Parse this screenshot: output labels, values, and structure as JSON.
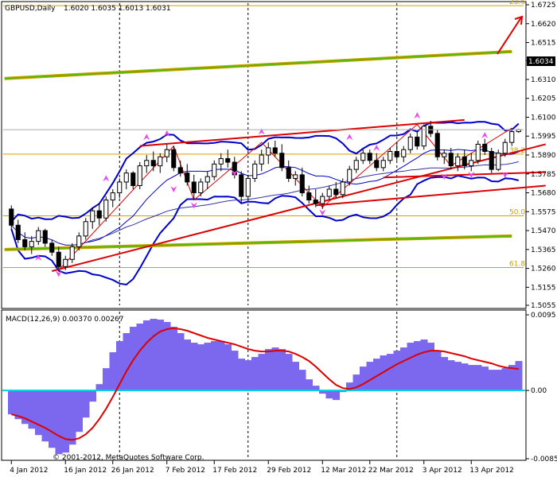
{
  "header": {
    "symbol_tf": "GBPUSD,Daily",
    "ohlc": "1.6020 1.6035 1.6013 1.6031"
  },
  "macd_header": "MACD(12,26,9) 0.00370 0.00267",
  "copyright": "© 2001-2012, MetaQuotes Software Corp.",
  "current_price": "1.6034",
  "colors": {
    "bull_candle": "#ffffff",
    "bear_candle": "#000000",
    "bollinger": "#0000cc",
    "trend": "#dd0000",
    "channel": "#c8a000",
    "channel_inner": "#44bb00",
    "fibo": "#d4a000",
    "macd_hist": "#7b68ee",
    "macd_signal": "#dd0000",
    "zero_line": "#00d0e0",
    "fractal": "#ee44ee"
  },
  "chart_data": [
    {
      "type": "candlestick",
      "title": "GBPUSD,Daily",
      "ylim": [
        1.5055,
        1.6725
      ],
      "y_ticks": [
        "1.6725",
        "1.6620",
        "1.6515",
        "1.6415",
        "1.6310",
        "1.6205",
        "1.6100",
        "1.5995",
        "1.5890",
        "1.5785",
        "1.5680",
        "1.5575",
        "1.5470",
        "1.5365",
        "1.5260",
        "1.5155",
        "1.5055"
      ],
      "x_ticks": [
        "4 Jan 2012",
        "16 Jan 2012",
        "26 Jan 2012",
        "7 Feb 2012",
        "17 Feb 2012",
        "29 Feb 2012",
        "12 Mar 2012",
        "22 Mar 2012",
        "3 Apr 2012",
        "13 Apr 2012"
      ],
      "fibo_levels": [
        {
          "label": "23.6",
          "value": 1.672
        },
        {
          "label": "38.2",
          "value": 1.5895
        },
        {
          "label": "50.0",
          "value": 1.5552
        },
        {
          "label": "61.8",
          "value": 1.5265
        }
      ],
      "ohlc": [
        [
          1.559,
          1.561,
          1.548,
          1.55
        ],
        [
          1.55,
          1.553,
          1.54,
          1.542
        ],
        [
          1.542,
          1.546,
          1.536,
          1.538
        ],
        [
          1.538,
          1.544,
          1.534,
          1.541
        ],
        [
          1.541,
          1.549,
          1.539,
          1.547
        ],
        [
          1.547,
          1.548,
          1.538,
          1.54
        ],
        [
          1.54,
          1.542,
          1.533,
          1.535
        ],
        [
          1.535,
          1.538,
          1.525,
          1.527
        ],
        [
          1.527,
          1.533,
          1.525,
          1.531
        ],
        [
          1.531,
          1.54,
          1.529,
          1.538
        ],
        [
          1.538,
          1.546,
          1.536,
          1.544
        ],
        [
          1.544,
          1.554,
          1.542,
          1.552
        ],
        [
          1.552,
          1.56,
          1.548,
          1.558
        ],
        [
          1.558,
          1.562,
          1.55,
          1.554
        ],
        [
          1.554,
          1.566,
          1.552,
          1.564
        ],
        [
          1.564,
          1.57,
          1.56,
          1.568
        ],
        [
          1.568,
          1.576,
          1.565,
          1.574
        ],
        [
          1.574,
          1.581,
          1.57,
          1.579
        ],
        [
          1.579,
          1.58,
          1.57,
          1.572
        ],
        [
          1.572,
          1.585,
          1.57,
          1.583
        ],
        [
          1.583,
          1.589,
          1.579,
          1.586
        ],
        [
          1.586,
          1.591,
          1.58,
          1.583
        ],
        [
          1.583,
          1.59,
          1.579,
          1.588
        ],
        [
          1.588,
          1.595,
          1.585,
          1.592
        ],
        [
          1.592,
          1.594,
          1.58,
          1.582
        ],
        [
          1.582,
          1.586,
          1.577,
          1.579
        ],
        [
          1.579,
          1.584,
          1.572,
          1.574
        ],
        [
          1.574,
          1.578,
          1.564,
          1.568
        ],
        [
          1.568,
          1.576,
          1.566,
          1.574
        ],
        [
          1.574,
          1.58,
          1.57,
          1.577
        ],
        [
          1.577,
          1.586,
          1.575,
          1.584
        ],
        [
          1.584,
          1.59,
          1.58,
          1.587
        ],
        [
          1.587,
          1.592,
          1.582,
          1.585
        ],
        [
          1.585,
          1.588,
          1.576,
          1.578
        ],
        [
          1.578,
          1.58,
          1.562,
          1.566
        ],
        [
          1.566,
          1.578,
          1.564,
          1.576
        ],
        [
          1.576,
          1.586,
          1.574,
          1.584
        ],
        [
          1.584,
          1.592,
          1.58,
          1.589
        ],
        [
          1.589,
          1.596,
          1.584,
          1.593
        ],
        [
          1.593,
          1.597,
          1.588,
          1.59
        ],
        [
          1.59,
          1.595,
          1.58,
          1.582
        ],
        [
          1.582,
          1.586,
          1.574,
          1.576
        ],
        [
          1.576,
          1.58,
          1.572,
          1.578
        ],
        [
          1.578,
          1.582,
          1.566,
          1.568
        ],
        [
          1.568,
          1.572,
          1.562,
          1.564
        ],
        [
          1.564,
          1.57,
          1.56,
          1.562
        ],
        [
          1.562,
          1.568,
          1.559,
          1.566
        ],
        [
          1.566,
          1.572,
          1.564,
          1.57
        ],
        [
          1.57,
          1.574,
          1.565,
          1.567
        ],
        [
          1.567,
          1.576,
          1.565,
          1.574
        ],
        [
          1.574,
          1.583,
          1.572,
          1.581
        ],
        [
          1.581,
          1.588,
          1.579,
          1.586
        ],
        [
          1.586,
          1.592,
          1.584,
          1.59
        ],
        [
          1.59,
          1.592,
          1.584,
          1.586
        ],
        [
          1.586,
          1.59,
          1.58,
          1.582
        ],
        [
          1.582,
          1.588,
          1.58,
          1.586
        ],
        [
          1.586,
          1.593,
          1.584,
          1.591
        ],
        [
          1.591,
          1.596,
          1.586,
          1.588
        ],
        [
          1.588,
          1.594,
          1.585,
          1.592
        ],
        [
          1.592,
          1.601,
          1.59,
          1.599
        ],
        [
          1.599,
          1.602,
          1.592,
          1.594
        ],
        [
          1.594,
          1.606,
          1.592,
          1.605
        ],
        [
          1.605,
          1.608,
          1.599,
          1.601
        ],
        [
          1.601,
          1.603,
          1.586,
          1.588
        ],
        [
          1.588,
          1.592,
          1.584,
          1.59
        ],
        [
          1.59,
          1.593,
          1.581,
          1.583
        ],
        [
          1.583,
          1.59,
          1.58,
          1.588
        ],
        [
          1.588,
          1.592,
          1.581,
          1.583
        ],
        [
          1.583,
          1.59,
          1.58,
          1.586
        ],
        [
          1.586,
          1.597,
          1.584,
          1.595
        ],
        [
          1.595,
          1.598,
          1.589,
          1.591
        ],
        [
          1.591,
          1.593,
          1.579,
          1.581
        ],
        [
          1.581,
          1.592,
          1.58,
          1.59
        ],
        [
          1.59,
          1.598,
          1.588,
          1.596
        ],
        [
          1.596,
          1.604,
          1.594,
          1.602
        ],
        [
          1.602,
          1.6035,
          1.6013,
          1.6031
        ]
      ]
    },
    {
      "type": "bar",
      "title": "MACD(12,26,9) 0.00370 0.00267",
      "ylim": [
        -0.00857,
        0.0095
      ],
      "y_ticks": [
        "0.0095",
        "0.00",
        "-0.00857"
      ],
      "histogram": [
        -0.003,
        -0.0036,
        -0.0042,
        -0.0048,
        -0.0056,
        -0.0064,
        -0.0072,
        -0.008,
        -0.0078,
        -0.0068,
        -0.0052,
        -0.0034,
        -0.0014,
        0.0008,
        0.0028,
        0.0048,
        0.0062,
        0.0072,
        0.008,
        0.0084,
        0.0088,
        0.009,
        0.0089,
        0.0086,
        0.008,
        0.0072,
        0.0064,
        0.006,
        0.0058,
        0.006,
        0.0062,
        0.0062,
        0.0058,
        0.005,
        0.004,
        0.0038,
        0.0042,
        0.0046,
        0.0052,
        0.0054,
        0.0052,
        0.0046,
        0.0036,
        0.0026,
        0.0014,
        0.0006,
        -0.0004,
        -0.001,
        -0.0012,
        -0.0002,
        0.001,
        0.002,
        0.003,
        0.0036,
        0.004,
        0.0044,
        0.0046,
        0.005,
        0.0054,
        0.006,
        0.0062,
        0.0064,
        0.006,
        0.005,
        0.0042,
        0.0038,
        0.0036,
        0.0034,
        0.0032,
        0.0032,
        0.003,
        0.0026,
        0.0026,
        0.0028,
        0.0032,
        0.0037
      ],
      "signal": [
        -0.003,
        -0.0032,
        -0.0035,
        -0.0039,
        -0.0043,
        -0.0047,
        -0.0052,
        -0.0057,
        -0.0061,
        -0.0062,
        -0.006,
        -0.0055,
        -0.0047,
        -0.0036,
        -0.0023,
        -0.0008,
        0.0008,
        0.0024,
        0.0038,
        0.005,
        0.006,
        0.0068,
        0.0074,
        0.0077,
        0.0078,
        0.0077,
        0.0075,
        0.0072,
        0.0069,
        0.0066,
        0.0064,
        0.0062,
        0.006,
        0.0058,
        0.0055,
        0.0052,
        0.005,
        0.0049,
        0.0049,
        0.005,
        0.005,
        0.0049,
        0.0046,
        0.0042,
        0.0037,
        0.003,
        0.0022,
        0.0014,
        0.0007,
        0.0003,
        0.0002,
        0.0004,
        0.0008,
        0.0013,
        0.0018,
        0.0023,
        0.0028,
        0.0033,
        0.0037,
        0.0041,
        0.0045,
        0.0048,
        0.005,
        0.005,
        0.0049,
        0.0047,
        0.0045,
        0.0043,
        0.004,
        0.0038,
        0.0036,
        0.0034,
        0.0031,
        0.0029,
        0.0028,
        0.0027
      ]
    }
  ]
}
